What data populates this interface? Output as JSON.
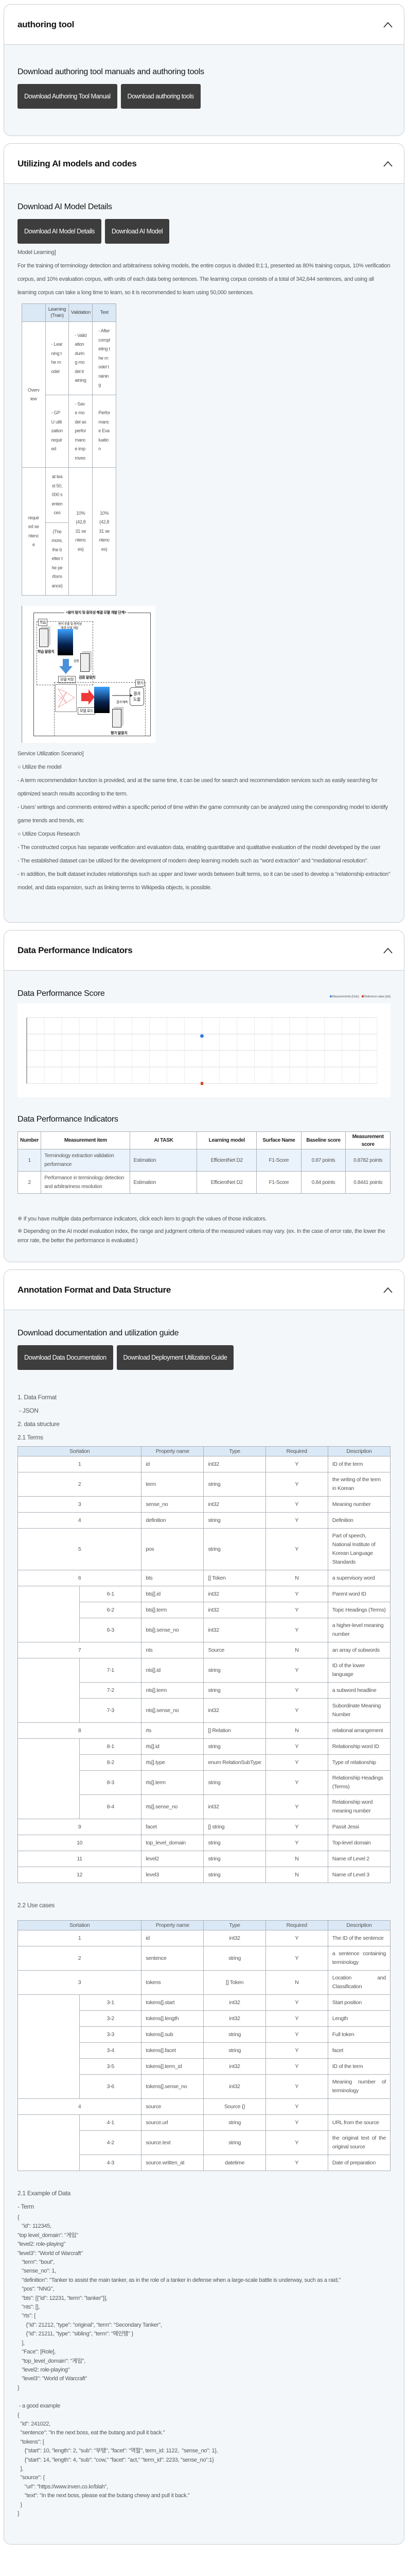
{
  "sections": {
    "authoring": {
      "title": "authoring tool",
      "heading": "Download authoring tool manuals and authoring tools",
      "buttons": [
        "Download Authoring Tool Manual",
        "Download authoring tools"
      ]
    },
    "ai_models": {
      "title": "Utilizing AI models and codes",
      "heading": "Download AI Model Details",
      "buttons": [
        "Download AI Model Details",
        "Download AI Model"
      ],
      "model_learning_label": "Model Learning]",
      "model_learning_text": "For the training of terminology detection and arbitrariness solving models, the entire corpus is divided 8:1:1, presented as 80% training corpus, 10% verification corpus, and 10% evaluation corpus, with units of each data being sentences. The learning corpus consists of a total of 342,644 sentences, and using all learning corpus can take a long time to learn, so it is recommended to learn using 50,000 sentences.",
      "table": {
        "headers": [
          "",
          "Learning (Train)",
          "Validation",
          "Test"
        ],
        "overview_label": "Overview",
        "overview_rows": [
          [
            "- Learning the model",
            "- Validation during model training",
            "- After completing the model training"
          ],
          [
            "- GPU utilization required",
            "- Save model as performance improves",
            "Performance Evaluation"
          ]
        ],
        "required_label": "required sentence",
        "required_train": [
          "at least 50,000 sentences",
          "(The more, the better the performance)"
        ],
        "required_validation": "10% (42,831 sentences)",
        "required_test": "10% (42,831 sentences)"
      },
      "diagram": {
        "title": "<용어 탐지 및 중의성 해결 모델 개발 단계>",
        "learn": "학습",
        "model_dev": "용어 추출 및 중의성",
        "model_dev2": "해결 모델 개발",
        "train_corpus": "학습 말뭉치",
        "verify": "검증",
        "verify_corpus": "검증 말뭉치",
        "save": "모델 저장",
        "eval": "평가",
        "load": "모델 로드",
        "predict": "결과 예측",
        "result": "결과 도출",
        "eval_corpus": "평가 말뭉치"
      },
      "scenario": [
        "Service Utilization Scenario]",
        "○ Utilize the model",
        "- A term recommendation function is provided, and at the same time, it can be used for search and recommendation services such as easily searching for optimized search results according to the term.",
        "- Users' writings and comments entered within a specific period of time within the game community can be analyzed using the corresponding model to identify game trends and trends, etc",
        "○ Utilize Corpus Research",
        "- The constructed corpus has separate verification and evaluation data, enabling quantitative and qualitative evaluation of the model developed by the user",
        "- The established dataset can be utilized for the development of modern deep learning models such as \"word extraction\" and \"mediational resolution\".",
        "- In addition, the built dataset includes relationships such as upper and lower words between built terms, so it can be used to develop a \"relationship extraction\" model, and data expansion, such as linking terms to Wikipedia objects, is possible."
      ]
    },
    "performance": {
      "title": "Data Performance Indicators",
      "score_heading": "Data Performance Score",
      "table_heading": "Data Performance Indicators",
      "headers": [
        "Number",
        "Measurement item",
        "AI TASK",
        "Learning model",
        "Surface Name",
        "Baseline score",
        "Measurement score"
      ],
      "rows": [
        [
          "1",
          "Terminology extraction validation performance",
          "Estimation",
          "EfficientNet D2",
          "F1-Score",
          "0.87 points",
          "0.8782 points"
        ],
        [
          "2",
          "Performance in terminology detection and arbitrariness resolution",
          "Estimation",
          "EfficientNet D2",
          "F1-Score",
          "0.84 points",
          "0.8441 points"
        ]
      ],
      "notes": [
        "※ If you have multiple data performance indicators, click each item to graph the values of those indicators.",
        "※ Depending on the AI model evaluation index, the range and judgment criteria of the measured values may vary. (ex. In the case of error rate, the lower the error rate, the better the performance is evaluated.)"
      ]
    },
    "annotation": {
      "title": "Annotation Format and Data Structure",
      "heading": "Download documentation and utilization guide",
      "buttons": [
        "Download Data Documentation",
        "Download Deployment Utilization Guide"
      ],
      "format_lines": [
        "1. Data Format",
        " - JSON"
      ],
      "structure_lines": [
        "2. data structure",
        "2.1 Terms"
      ],
      "table_headers": [
        "Sortation",
        "Property name",
        "Type",
        "Required",
        "Description"
      ],
      "terms_rows": [
        {
          "no": "1",
          "prop": "id",
          "type": "int32",
          "req": "Y",
          "desc": "ID of the term"
        },
        {
          "no": "2",
          "prop": "term",
          "type": "string",
          "req": "Y",
          "desc": "the writing of the term in Korean"
        },
        {
          "no": "3",
          "prop": "sense_no",
          "type": "int32",
          "req": "Y",
          "desc": "Meaning number"
        },
        {
          "no": "4",
          "prop": "definition",
          "type": "string",
          "req": "Y",
          "desc": "Definition"
        },
        {
          "no": "5",
          "prop": "pos",
          "type": "string",
          "req": "Y",
          "desc": "Part of speech, National Institute of Korean Language Standards"
        },
        {
          "no": "6",
          "prop": "bts",
          "type": "[] Token",
          "req": "N",
          "desc": "a supervisory word"
        },
        {
          "sub": "6-1",
          "prop": "bts[].id",
          "type": "int32",
          "req": "Y",
          "desc": "Parent word ID"
        },
        {
          "sub": "6-2",
          "prop": "bts[].term",
          "type": "int32",
          "req": "Y",
          "desc": "Topic Headings (Terms)"
        },
        {
          "sub": "6-3",
          "prop": "bts[].sense_no",
          "type": "int32",
          "req": "Y",
          "desc": "a higher-level meaning number"
        },
        {
          "no": "7",
          "prop": "nts",
          "type": "Source",
          "req": "N",
          "desc": "an array of subwords"
        },
        {
          "sub": "7-1",
          "prop": "nts[].id",
          "type": "string",
          "req": "Y",
          "desc": "ID of the lower language"
        },
        {
          "sub": "7-2",
          "prop": "nts[].term",
          "type": "string",
          "req": "Y",
          "desc": "a subword headline"
        },
        {
          "sub": "7-3",
          "prop": "nts[].sense_no",
          "type": "int32",
          "req": "Y",
          "desc": "Subordinate Meaning Number"
        },
        {
          "no": "8",
          "prop": "rts",
          "type": "[] Relation",
          "req": "N",
          "desc": "relational arrangement"
        },
        {
          "sub": "8-1",
          "prop": "rts[].id",
          "type": "string",
          "req": "Y",
          "desc": "Relationship word ID"
        },
        {
          "sub": "8-2",
          "prop": "rts[].type",
          "type": "enum RelationSubType",
          "req": "Y",
          "desc": "Type of relationship"
        },
        {
          "sub": "8-3",
          "prop": "rts[].term",
          "type": "string",
          "req": "Y",
          "desc": "Relationship Headings (Terms)"
        },
        {
          "sub": "8-4",
          "prop": "rts[].sense_no",
          "type": "int32",
          "req": "Y",
          "desc": "Relationship word meaning number"
        },
        {
          "no": "9",
          "prop": "facet",
          "type": "[] string",
          "req": "Y",
          "desc": "Passit Jessi"
        },
        {
          "no": "10",
          "prop": "top_level_domain",
          "type": "string",
          "req": "Y",
          "desc": "Top-level domain"
        },
        {
          "no": "11",
          "prop": "level2",
          "type": "string",
          "req": "N",
          "desc": "Name of Level 2"
        },
        {
          "no": "12",
          "prop": "level3",
          "type": "string",
          "req": "N",
          "desc": "Name of Level 3"
        }
      ],
      "usecase_heading": "2.2 Use cases",
      "usecase_rows": [
        {
          "no": "1",
          "prop": "id",
          "type": "int32",
          "req": "Y",
          "desc": "The ID of the sentence"
        },
        {
          "no": "2",
          "prop": "sentence",
          "type": "string",
          "req": "Y",
          "desc": "a sentence containing terminology"
        },
        {
          "no": "3",
          "prop": "tokens",
          "type": "[] Token",
          "req": "N",
          "desc": "Location and Classification"
        },
        {
          "sub": "3-1",
          "prop": "tokens[].start",
          "type": "int32",
          "req": "Y",
          "desc": "Start position"
        },
        {
          "sub": "3-2",
          "prop": "tokens[].length",
          "type": "int32",
          "req": "Y",
          "desc": "Length"
        },
        {
          "sub": "3-3",
          "prop": "tokens[].sub",
          "type": "string",
          "req": "Y",
          "desc": "Full token"
        },
        {
          "sub": "3-4",
          "prop": "tokens[].facet",
          "type": "string",
          "req": "Y",
          "desc": "facet"
        },
        {
          "sub": "3-5",
          "prop": "tokens[].term_id",
          "type": "int32",
          "req": "Y",
          "desc": "ID of the term"
        },
        {
          "sub": "3-6",
          "prop": "tokens[].sense_no",
          "type": "int32",
          "req": "Y",
          "desc": "Meaning number of terminology"
        },
        {
          "no": "4",
          "prop": "source",
          "type": "Source {}",
          "req": "Y",
          "desc": ""
        },
        {
          "sub": "4-1",
          "prop": "source.url",
          "type": "string",
          "req": "Y",
          "desc": "URL from the source"
        },
        {
          "sub": "4-2",
          "prop": "source.text",
          "type": "string",
          "req": "Y",
          "desc": "the original text of the original source"
        },
        {
          "sub": "4-3",
          "prop": "source.written_at",
          "type": "datetime",
          "req": "Y",
          "desc": "Date of preparation"
        }
      ],
      "example_heading": "2.1 Example of Data",
      "term_label": "- Term",
      "term_example": [
        "{",
        "   \"id\": 112345,",
        "\"top level_domain\": \"게임\"",
        "\"level2: role-playing\"",
        "\"level3\": \"World of Warcraft\"",
        "   \"term\": \"bout\",",
        "   \"sense_no\": 1,",
        "   \"definition\": \"Tanker to assist the main tanker, as in the role of a tanker in defense when a large-scale battle is underway, such as a raid,\"",
        "   \"pos\": \"NNG\",",
        "   \"bts\": [{\"id\": 12231, \"term\": \"tanker\"}],",
        "   \"nts\": [],",
        "   \"rts\": [",
        "      {\"id\": 21212, \"type\": \"original\", \"term\": \"Secondary Tanker\",",
        "      {\"id\": 21211, \"type\": \"sibling\", \"term\": \"메인탱\" }",
        "   ],",
        "   \"Face\": [Role],",
        "   \"top_level_domain\": \"게임\",",
        "   \"level2: role-playing\"",
        "   \"level3\": \"World of Warcraft\"",
        "}"
      ],
      "good_label": " - a good example",
      "good_example": [
        "{",
        "  \"id\": 241022,",
        "  \"sentence\": \"In the next boss, eat the butang and pull it back.\"",
        "  \"tokens\": [",
        "     {\"start\": 10, \"length\": 2, \"sub\": \"부탱\", \"facet\": \"역할\", term_id: 1122,  \"sense_no\": 1},",
        "     {\"start\": 14, \"length\": 4, \"sub\": \"cow,\" \"facet\": \"act,\" \"term_id\": 2233, \"sense_no\":1}",
        "  ],",
        "  \"source\": {",
        "     \"url\": \"https://www.inven.co.kr/blah\",",
        "     \"text\": \"In the next boss, please eat the butang chewy and pull it back.\"",
        "  }",
        "}"
      ]
    }
  },
  "chart_data": {
    "type": "scatter",
    "title": "Data Performance Score",
    "legend": [
      "Measurements (Dots)",
      "Reference value (dot)"
    ],
    "legend_placement": "top-right",
    "grid": true,
    "series": [
      {
        "name": "Measurements (Dots)",
        "values": [
          0.8782
        ],
        "color": "#2f7de1"
      },
      {
        "name": "Reference value (dot)",
        "values": [
          0.87
        ],
        "color": "#d9452b"
      }
    ]
  },
  "colors": {
    "button": "#3d3d3e",
    "table_header": "#dbe8f5",
    "highlight_row": "#eaf2fb"
  }
}
